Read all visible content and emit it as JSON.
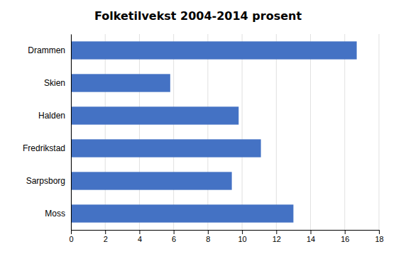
{
  "chart_data": {
    "type": "bar",
    "orientation": "horizontal",
    "title": "Folketilvekst 2004-2014 prosent",
    "categories": [
      "Drammen",
      "Skien",
      "Halden",
      "Fredrikstad",
      "Sarpsborg",
      "Moss"
    ],
    "values": [
      16.7,
      5.8,
      9.8,
      11.1,
      9.4,
      13.0
    ],
    "color": "#4472C4",
    "xlim": [
      0,
      18
    ],
    "xticks": [
      0,
      2,
      4,
      6,
      8,
      10,
      12,
      14,
      16,
      18
    ],
    "grid": true
  }
}
